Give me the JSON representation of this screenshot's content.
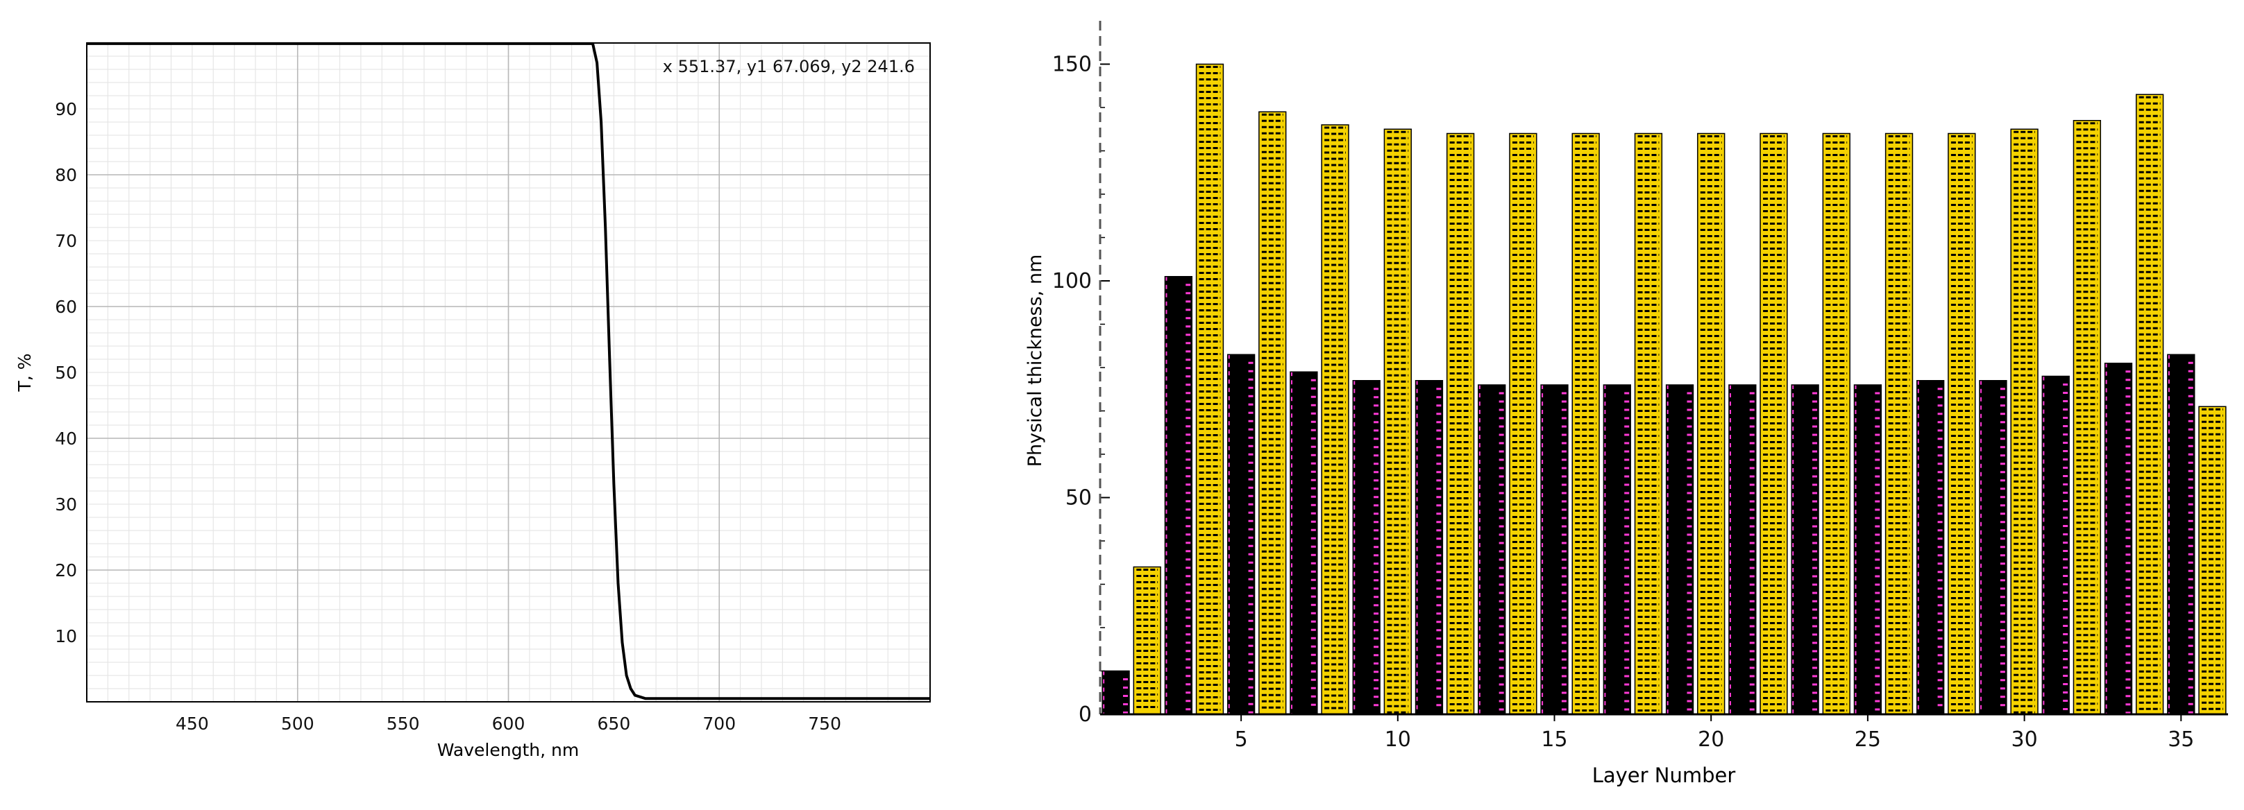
{
  "chart_data": [
    {
      "type": "line",
      "xlabel": "Wavelength, nm",
      "ylabel": "T, %",
      "xlim": [
        400,
        800
      ],
      "ylim": [
        0,
        100
      ],
      "xticks": [
        450,
        500,
        550,
        600,
        650,
        700,
        750
      ],
      "yticks": [
        10,
        20,
        30,
        40,
        50,
        60,
        70,
        80,
        90
      ],
      "grid": true,
      "cursor_readout": "x  551.37, y1  67.069, y2  241.6",
      "series": [
        {
          "x": [
            400,
            500,
            600,
            640,
            642,
            644,
            646,
            648,
            650,
            652,
            654,
            656,
            658,
            660,
            665,
            700,
            800
          ],
          "y": [
            99.9,
            99.9,
            99.9,
            99.9,
            97,
            88,
            72,
            52,
            33,
            18,
            9,
            4,
            2,
            1,
            0.5,
            0.5,
            0.5
          ]
        }
      ],
      "color": "#000000"
    },
    {
      "type": "bar",
      "xlabel": "Layer Number",
      "ylabel": "Physical thickness, nm",
      "xlim": [
        0.5,
        36.5
      ],
      "ylim": [
        0,
        160
      ],
      "xticks": [
        5,
        10,
        15,
        20,
        25,
        30,
        35
      ],
      "yticks": [
        0,
        50,
        100,
        150
      ],
      "grid": false,
      "categories": [
        1,
        2,
        3,
        4,
        5,
        6,
        7,
        8,
        9,
        10,
        11,
        12,
        13,
        14,
        15,
        16,
        17,
        18,
        19,
        20,
        21,
        22,
        23,
        24,
        25,
        26,
        27,
        28,
        29,
        30,
        31,
        32,
        33,
        34,
        35,
        36
      ],
      "values": [
        10,
        34,
        101,
        150,
        83,
        139,
        79,
        136,
        77,
        135,
        77,
        134,
        76,
        134,
        76,
        134,
        76,
        134,
        76,
        134,
        76,
        134,
        76,
        134,
        76,
        134,
        77,
        134,
        77,
        135,
        78,
        137,
        81,
        143,
        83,
        71
      ],
      "colors": {
        "odd": "#000000",
        "odd_hatch": "#ff3ad6",
        "even": "#f5d200",
        "even_hatch": "#000000"
      }
    }
  ]
}
